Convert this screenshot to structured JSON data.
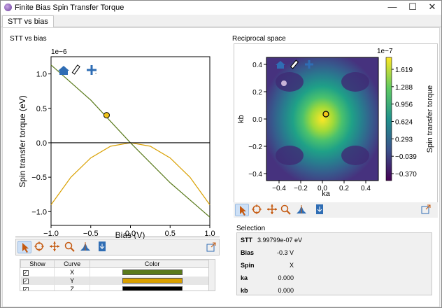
{
  "window": {
    "title": "Finite Bias Spin Transfer Torque"
  },
  "tabs": [
    {
      "label": "STT vs bias"
    }
  ],
  "left_panel": {
    "label": "STT vs bias"
  },
  "right_panel": {
    "label": "Reciprocal space"
  },
  "stt_plot": {
    "type": "line",
    "xlabel": "Bias (V)",
    "ylabel": "Spin transfer torque (eV)",
    "offset_label": "1e−6",
    "xlim": [
      -1.0,
      1.0
    ],
    "ylim": [
      -1.2,
      1.25
    ],
    "xticks": [
      "−1.0",
      "−0.5",
      "0.0",
      "0.5",
      "1.0"
    ],
    "yticks": [
      "−1.0",
      "−0.5",
      "0.0",
      "0.5",
      "1.0"
    ],
    "chart_data": {
      "type": "line",
      "series": [
        {
          "name": "X",
          "color": "#5a7a1c",
          "x": [
            -1.0,
            -0.5,
            0.0,
            0.5,
            1.0
          ],
          "y": [
            1.13,
            0.62,
            0.0,
            -0.58,
            -1.08
          ]
        },
        {
          "name": "Y",
          "color": "#d9a000",
          "x": [
            -1.0,
            -0.75,
            -0.5,
            -0.25,
            0.0,
            0.25,
            0.5,
            0.75,
            1.0
          ],
          "y": [
            -0.9,
            -0.5,
            -0.22,
            -0.05,
            0.0,
            -0.05,
            -0.22,
            -0.5,
            -0.9
          ]
        },
        {
          "name": "Z",
          "color": "#000000",
          "x": [
            -1.0,
            1.0
          ],
          "y": [
            0.0,
            0.0
          ]
        }
      ],
      "marker": {
        "x": -0.3,
        "y": 0.4
      }
    }
  },
  "recip_plot": {
    "xlabel": "ka",
    "ylabel": "kb",
    "offset_label": "1e−7",
    "xticks": [
      "−0.4",
      "−0.2",
      "0.0",
      "0.2",
      "0.4"
    ],
    "yticks": [
      "0.4",
      "0.2",
      "0.0",
      "−0.2",
      "−0.4"
    ],
    "colorbar_label": "Spin transfer torque",
    "colorbar_ticks": [
      "1.619",
      "1.288",
      "0.956",
      "0.624",
      "0.293",
      "−0.039",
      "−0.370"
    ],
    "marker": {
      "x": 0.0,
      "y": 0.0
    }
  },
  "curves_table": {
    "headers": [
      "Show",
      "Curve",
      "Color"
    ],
    "rows": [
      {
        "show": "✓",
        "curve": "X",
        "color": "#5a7a1c"
      },
      {
        "show": "✓",
        "curve": "Y",
        "color": "#d9a000"
      },
      {
        "show": "✓",
        "curve": "Z",
        "color": "#000000"
      }
    ]
  },
  "selection": {
    "label": "Selection",
    "stt_label": "STT",
    "stt_value": "3.99799e-07 eV",
    "bias_label": "Bias",
    "bias_value": "-0.3 V",
    "spin_label": "Spin",
    "spin_value": "X",
    "ka_label": "ka",
    "ka_value": "0.000",
    "kb_label": "kb",
    "kb_value": "0.000"
  }
}
